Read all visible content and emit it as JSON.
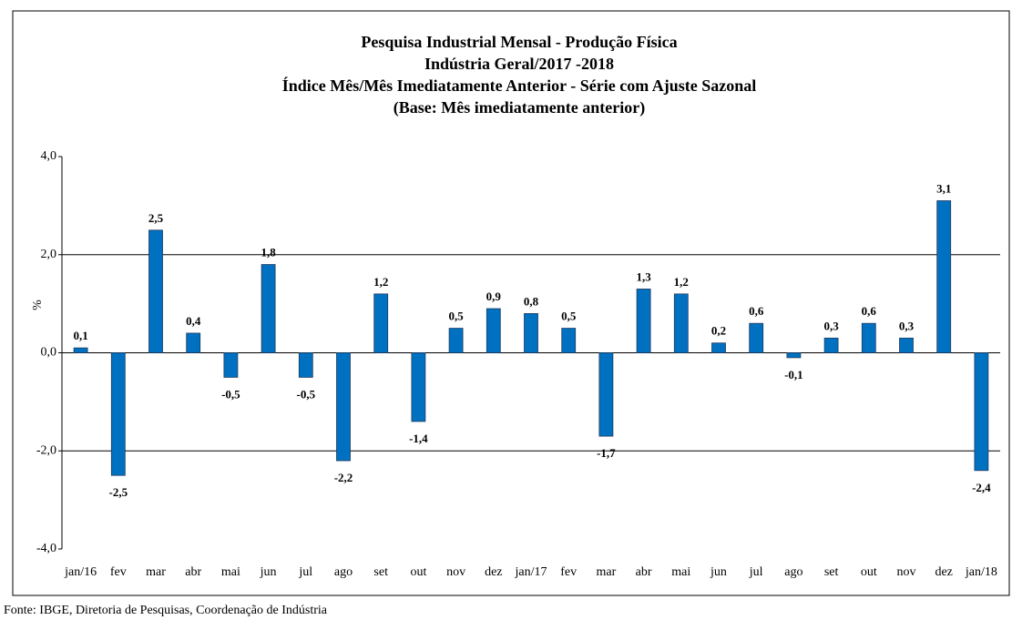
{
  "chart_data": {
    "type": "bar",
    "title": [
      "Pesquisa Industrial Mensal - Produção Física",
      "Indústria Geral/2017 -2018",
      "Índice Mês/Mês Imediatamente Anterior - Série com Ajuste Sazonal",
      "(Base: Mês imediatamente anterior)"
    ],
    "y_label": "%",
    "categories": [
      "jan/16",
      "fev",
      "mar",
      "abr",
      "mai",
      "jun",
      "jul",
      "ago",
      "set",
      "out",
      "nov",
      "dez",
      "jan/17",
      "fev",
      "mar",
      "abr",
      "mai",
      "jun",
      "jul",
      "ago",
      "set",
      "out",
      "nov",
      "dez",
      "jan/18"
    ],
    "values": [
      0.1,
      -2.5,
      2.5,
      0.4,
      -0.5,
      1.8,
      -0.5,
      -2.2,
      1.2,
      -1.4,
      0.5,
      0.9,
      0.8,
      0.5,
      -1.7,
      1.3,
      1.2,
      0.2,
      0.6,
      -0.1,
      0.3,
      0.6,
      0.3,
      3.1,
      -2.4
    ],
    "value_labels": [
      "0,1",
      "-2,5",
      "2,5",
      "0,4",
      "-0,5",
      "1,8",
      "-0,5",
      "-2,2",
      "1,2",
      "-1,4",
      "0,5",
      "0,9",
      "0,8",
      "0,5",
      "-1,7",
      "1,3",
      "1,2",
      "0,2",
      "0,6",
      "-0,1",
      "0,3",
      "0,6",
      "0,3",
      "3,1",
      "-2,4"
    ],
    "color": "#0070c0",
    "ylim": [
      -4,
      4
    ],
    "yticks": [
      {
        "value": -4,
        "label": "-4,0"
      },
      {
        "value": -2,
        "label": "-2,0"
      },
      {
        "value": 0,
        "label": "0,0"
      },
      {
        "value": 2,
        "label": "2,0"
      },
      {
        "value": 4,
        "label": "4,0"
      }
    ],
    "grid": true,
    "source": "Fonte: IBGE, Diretoria de Pesquisas, Coordenação de Indústria"
  }
}
